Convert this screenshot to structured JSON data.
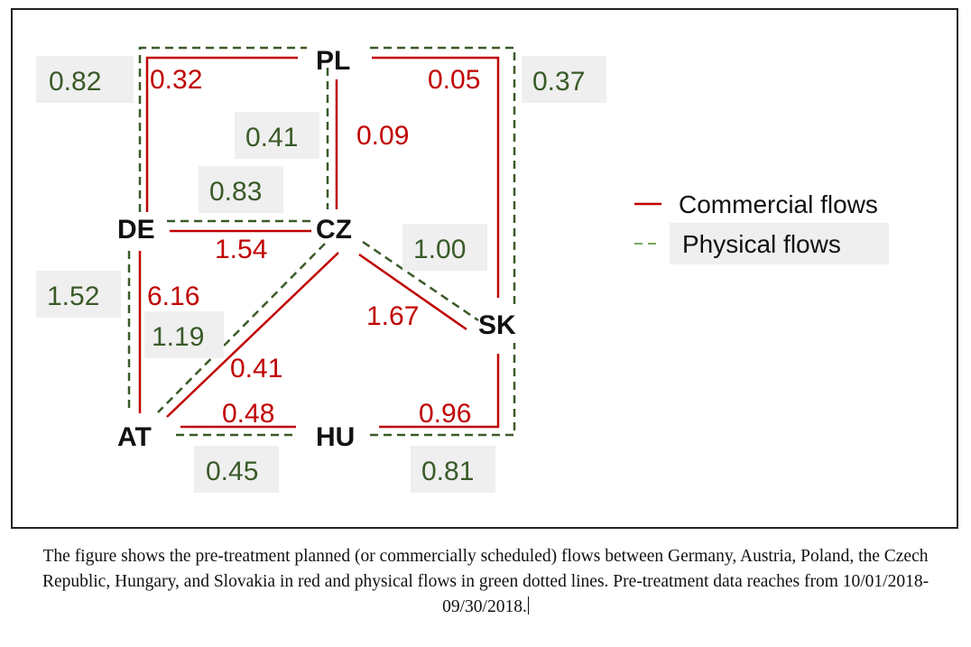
{
  "nodes": {
    "PL": "PL",
    "DE": "DE",
    "CZ": "CZ",
    "SK": "SK",
    "AT": "AT",
    "HU": "HU"
  },
  "commercial": {
    "de_pl": "0.32",
    "pl_sk": "0.05",
    "pl_cz": "0.09",
    "de_cz": "1.54",
    "de_at": "6.16",
    "cz_sk": "1.67",
    "cz_at": "0.41",
    "at_hu": "0.48",
    "hu_sk": "0.96"
  },
  "physical": {
    "de_pl": "0.82",
    "pl_sk": "0.37",
    "pl_cz": "0.41",
    "de_cz": "0.83",
    "cz_sk": "1.00",
    "de_at": "1.52",
    "cz_at": "1.19",
    "at_hu": "0.45",
    "hu_sk": "0.81"
  },
  "legend": {
    "commercial": "Commercial flows",
    "physical": "Physical flows"
  },
  "colors": {
    "commercial": "#c00000",
    "physical": "#3a5a28"
  },
  "caption": "The figure shows the pre-treatment planned (or commercially scheduled) flows between Germany, Austria, Poland, the Czech Republic, Hungary, and Slovakia in red and physical flows in green dotted lines. Pre-treatment data reaches from 10/01/2018-09/30/2018."
}
